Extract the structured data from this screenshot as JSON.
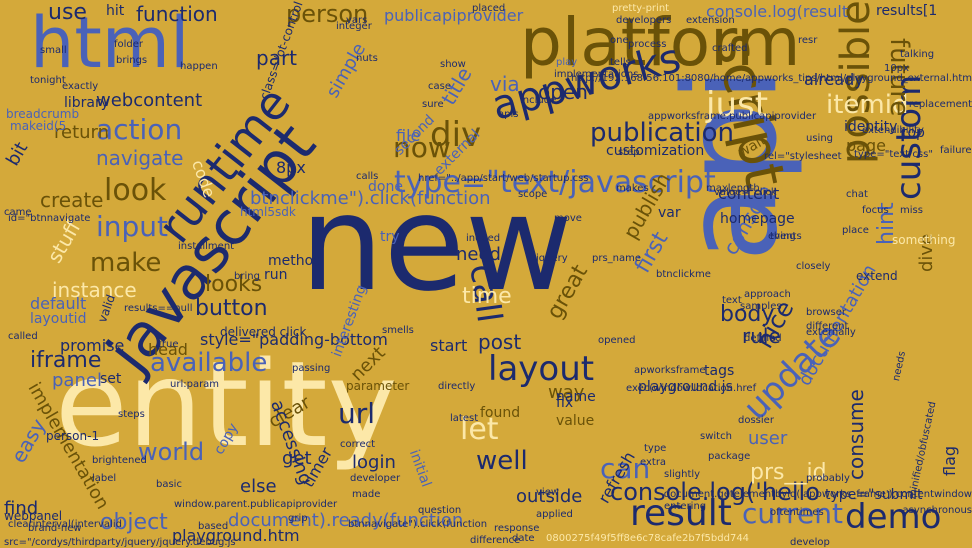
{
  "background": "#d4a93a",
  "palette": {
    "navy": "#1c2a6e",
    "blue": "#4a62b8",
    "olive": "#6a5208",
    "cream": "#fce8a8",
    "light": "#ecc96a",
    "brown": "#8a6a10"
  },
  "words": [
    {
      "text": "new",
      "color": "navy"
    },
    {
      "text": "entity",
      "color": "cream"
    },
    {
      "text": "api",
      "color": "blue"
    },
    {
      "text": "platform",
      "color": "olive"
    },
    {
      "text": "javascript",
      "color": "navy"
    },
    {
      "text": "html",
      "color": "blue"
    },
    {
      "text": "script",
      "color": "olive"
    },
    {
      "text": "runtime",
      "color": "navy"
    },
    {
      "text": "possible",
      "color": "olive"
    },
    {
      "text": "update",
      "color": "blue"
    },
    {
      "text": "custom",
      "color": "navy"
    },
    {
      "text": "appworks",
      "color": "navy"
    },
    {
      "text": "type=\"text/javascript",
      "color": "blue"
    },
    {
      "text": "layout",
      "color": "navy"
    },
    {
      "text": "result",
      "color": "navy"
    },
    {
      "text": "demo",
      "color": "navy"
    },
    {
      "text": "current",
      "color": "blue"
    },
    {
      "text": "console.log('hello",
      "color": "navy"
    },
    {
      "text": "call",
      "color": "navy"
    },
    {
      "text": "just",
      "color": "cream"
    },
    {
      "text": "itemid",
      "color": "cream"
    },
    {
      "text": "look",
      "color": "olive"
    },
    {
      "text": "action",
      "color": "blue"
    },
    {
      "text": "make",
      "color": "olive"
    },
    {
      "text": "input",
      "color": "blue"
    },
    {
      "text": "button",
      "color": "navy"
    },
    {
      "text": "looks",
      "color": "olive"
    },
    {
      "text": "available",
      "color": "blue"
    },
    {
      "text": "iframe",
      "color": "navy"
    },
    {
      "text": "url",
      "color": "navy"
    },
    {
      "text": "let",
      "color": "cream"
    },
    {
      "text": "well",
      "color": "navy"
    },
    {
      "text": "can",
      "color": "blue"
    },
    {
      "text": "world",
      "color": "blue"
    },
    {
      "text": "object",
      "color": "blue"
    },
    {
      "text": "document).ready(function",
      "color": "blue"
    },
    {
      "text": "publication",
      "color": "navy"
    },
    {
      "text": "div",
      "color": "olive"
    },
    {
      "text": "now",
      "color": "olive"
    },
    {
      "text": "future",
      "color": "olive"
    },
    {
      "text": "first",
      "color": "blue"
    },
    {
      "text": "time",
      "color": "cream"
    },
    {
      "text": "post",
      "color": "navy"
    },
    {
      "text": "body",
      "color": "navy"
    },
    {
      "text": "rule",
      "color": "navy"
    },
    {
      "text": "nice",
      "color": "navy"
    },
    {
      "text": "webcontent",
      "color": "navy"
    },
    {
      "text": "function",
      "color": "navy"
    },
    {
      "text": "person",
      "color": "olive"
    },
    {
      "text": "use",
      "color": "navy"
    },
    {
      "text": "open",
      "color": "navy"
    },
    {
      "text": "navigate",
      "color": "blue"
    },
    {
      "text": "create",
      "color": "olive"
    },
    {
      "text": "return",
      "color": "olive"
    },
    {
      "text": "btnclickme\").click(function",
      "color": "blue"
    },
    {
      "text": "console.log(result",
      "color": "blue"
    },
    {
      "text": "hint",
      "color": "blue"
    },
    {
      "text": "dive",
      "color": "olive"
    },
    {
      "text": "page",
      "color": "olive"
    },
    {
      "text": "prs__id",
      "color": "cream"
    },
    {
      "text": "login",
      "color": "navy"
    },
    {
      "text": "else",
      "color": "navy"
    },
    {
      "text": "get",
      "color": "navy"
    },
    {
      "text": "next",
      "color": "olive"
    },
    {
      "text": "start",
      "color": "navy"
    },
    {
      "text": "way",
      "color": "olive"
    },
    {
      "text": "console",
      "color": "blue"
    },
    {
      "text": "documentation",
      "color": "blue"
    },
    {
      "text": "consume",
      "color": "navy"
    },
    {
      "text": "user",
      "color": "blue"
    },
    {
      "text": "instance",
      "color": "cream"
    },
    {
      "text": "panel",
      "color": "blue"
    },
    {
      "text": "promise",
      "color": "navy"
    },
    {
      "text": "style=\"padding-bottom",
      "color": "navy"
    },
    {
      "text": "stuff",
      "color": "cream"
    },
    {
      "text": "need",
      "color": "navy"
    },
    {
      "text": "playground.htm",
      "color": "navy"
    },
    {
      "text": "publish",
      "color": "olive"
    },
    {
      "text": "customization",
      "color": "navy"
    },
    {
      "text": "content",
      "color": "navy"
    },
    {
      "text": "homepage",
      "color": "navy"
    },
    {
      "text": "implementation",
      "color": "olive"
    },
    {
      "text": "easy",
      "color": "blue"
    },
    {
      "text": "find",
      "color": "navy"
    },
    {
      "text": "clear",
      "color": "olive"
    },
    {
      "text": "library",
      "color": "navy"
    },
    {
      "text": "part",
      "color": "navy"
    },
    {
      "text": "hit",
      "color": "navy"
    },
    {
      "text": "simple",
      "color": "blue"
    },
    {
      "text": "title",
      "color": "blue"
    },
    {
      "text": "via",
      "color": "blue"
    },
    {
      "text": "publicapiprovider",
      "color": "blue"
    },
    {
      "text": "results[1",
      "color": "navy"
    },
    {
      "text": "already",
      "color": "navy"
    },
    {
      "text": "file",
      "color": "blue"
    },
    {
      "text": "done",
      "color": "blue"
    },
    {
      "text": "default",
      "color": "blue"
    },
    {
      "text": "layoutid",
      "color": "blue"
    },
    {
      "text": "head",
      "color": "olive"
    },
    {
      "text": "set",
      "color": "navy"
    },
    {
      "text": "accessing",
      "color": "navy"
    },
    {
      "text": "type=\"submit",
      "color": "navy"
    },
    {
      "text": "flag",
      "color": "navy"
    },
    {
      "text": "initial",
      "color": "blue"
    },
    {
      "text": "outside",
      "color": "navy"
    },
    {
      "text": "8px",
      "color": "navy"
    },
    {
      "text": "bit",
      "color": "navy"
    },
    {
      "text": "method",
      "color": "navy"
    },
    {
      "text": "run",
      "color": "navy"
    },
    {
      "text": "copy",
      "color": "blue"
    },
    {
      "text": "great",
      "color": "olive"
    },
    {
      "text": "interesting",
      "color": "blue"
    },
    {
      "text": "var",
      "color": "navy"
    },
    {
      "text": "try",
      "color": "blue"
    },
    {
      "text": "playground.js",
      "color": "navy"
    },
    {
      "text": "second",
      "color": "blue"
    },
    {
      "text": "external",
      "color": "blue"
    },
    {
      "text": "identity",
      "color": "navy"
    },
    {
      "text": "top",
      "color": "navy"
    },
    {
      "text": "extend",
      "color": "navy"
    },
    {
      "text": "something",
      "color": "cream"
    },
    {
      "text": "timer",
      "color": "navy"
    },
    {
      "text": "refresh",
      "color": "navy"
    },
    {
      "text": "fix",
      "color": "navy"
    },
    {
      "text": "name",
      "color": "navy"
    },
    {
      "text": "tags",
      "color": "navy"
    },
    {
      "text": "code",
      "color": "cream"
    },
    {
      "text": "found",
      "color": "olive"
    },
    {
      "text": "value",
      "color": "olive"
    },
    {
      "text": "parameter",
      "color": "olive"
    },
    {
      "text": "valid",
      "color": "navy"
    },
    {
      "text": "makeid(5",
      "color": "blue"
    },
    {
      "text": "breadcrumb",
      "color": "blue"
    },
    {
      "text": "person-1",
      "color": "navy"
    },
    {
      "text": "webpanel",
      "color": "navy"
    },
    {
      "text": "brand-new",
      "color": "navy"
    },
    {
      "text": "steps",
      "color": "navy"
    },
    {
      "text": "small",
      "color": "navy"
    },
    {
      "text": "folder",
      "color": "navy"
    },
    {
      "text": "pretty-print",
      "color": "cream"
    },
    {
      "text": "developers",
      "color": "navy"
    },
    {
      "text": "placed",
      "color": "navy"
    },
    {
      "text": "extension",
      "color": "navy"
    },
    {
      "text": "play",
      "color": "blue"
    },
    {
      "text": "implementations",
      "color": "navy"
    },
    {
      "text": "class=\"ot-control",
      "color": "navy"
    },
    {
      "text": "appworksframe.publicapiprovider",
      "color": "navy"
    },
    {
      "text": "delivered click",
      "color": "navy"
    },
    {
      "text": "passing",
      "color": "navy"
    },
    {
      "text": "smells",
      "color": "navy"
    },
    {
      "text": "btnnavigate\").click(function",
      "color": "navy"
    },
    {
      "text": "window.parent.publicapiprovider",
      "color": "navy"
    },
    {
      "text": "clearinterval(intervalid",
      "color": "navy"
    },
    {
      "text": "src=\"/cordys/thirdparty/jquery/jquery.debug.js",
      "color": "navy"
    },
    {
      "text": "href=\"../app/start/web/startup.css",
      "color": "navy"
    },
    {
      "text": "rel=\"stylesheet",
      "color": "navy"
    },
    {
      "text": "installment",
      "color": "navy"
    },
    {
      "text": "html5sdk",
      "color": "blue"
    },
    {
      "text": "id=\"btnnavigate",
      "color": "navy"
    },
    {
      "text": "step",
      "color": "navy"
    },
    {
      "text": "makes",
      "color": "navy"
    },
    {
      "text": "maxlength",
      "color": "navy"
    },
    {
      "text": "value=\"click",
      "color": "navy"
    },
    {
      "text": "scope",
      "color": "navy"
    },
    {
      "text": "move",
      "color": "navy"
    },
    {
      "text": "events",
      "color": "navy"
    },
    {
      "text": "place",
      "color": "navy"
    },
    {
      "text": "miss",
      "color": "navy"
    },
    {
      "text": "failure",
      "color": "navy"
    },
    {
      "text": "using",
      "color": "navy"
    },
    {
      "text": "extendibility",
      "color": "navy"
    },
    {
      "text": "wait",
      "color": "olive"
    },
    {
      "text": "approach",
      "color": "navy"
    },
    {
      "text": "samples",
      "color": "navy"
    },
    {
      "text": "different",
      "color": "navy"
    },
    {
      "text": "exec(window.location.href",
      "color": "navy"
    },
    {
      "text": "apworksframe",
      "color": "navy"
    },
    {
      "text": "opened",
      "color": "navy"
    },
    {
      "text": "prs_name",
      "color": "navy"
    },
    {
      "text": "btnclickme",
      "color": "navy"
    },
    {
      "text": "directly",
      "color": "navy"
    },
    {
      "text": "latest",
      "color": "navy"
    },
    {
      "text": "question",
      "color": "navy"
    },
    {
      "text": "response",
      "color": "navy"
    },
    {
      "text": "date",
      "color": "navy"
    },
    {
      "text": "difference",
      "color": "navy"
    },
    {
      "text": "applied",
      "color": "navy"
    },
    {
      "text": "view",
      "color": "navy"
    },
    {
      "text": "grip",
      "color": "navy"
    },
    {
      "text": "based",
      "color": "navy"
    },
    {
      "text": "label",
      "color": "navy"
    },
    {
      "text": "brightened",
      "color": "navy"
    },
    {
      "text": "basic",
      "color": "navy"
    },
    {
      "text": "made",
      "color": "navy"
    },
    {
      "text": "developer",
      "color": "navy"
    },
    {
      "text": "correct",
      "color": "navy"
    },
    {
      "text": "url:param",
      "color": "navy"
    },
    {
      "text": "externally",
      "color": "navy"
    },
    {
      "text": "browser",
      "color": "navy"
    },
    {
      "text": "indeed",
      "color": "navy"
    },
    {
      "text": "jquery",
      "color": "navy"
    },
    {
      "text": "bring",
      "color": "navy"
    },
    {
      "text": "called",
      "color": "navy"
    },
    {
      "text": "results==null",
      "color": "navy"
    },
    {
      "text": "true",
      "color": "navy"
    },
    {
      "text": "defined",
      "color": "navy"
    },
    {
      "text": "text",
      "color": "navy"
    },
    {
      "text": "type",
      "color": "navy"
    },
    {
      "text": "switch",
      "color": "navy"
    },
    {
      "text": "package",
      "color": "navy"
    },
    {
      "text": "probably",
      "color": "navy"
    },
    {
      "text": "asynchronous",
      "color": "navy"
    },
    {
      "text": "develop",
      "color": "navy"
    },
    {
      "text": "0800275f49f5ff8e6c78cafe2b7f5bdd744",
      "color": "cream"
    },
    {
      "text": "type=\"text/css\"",
      "color": "navy"
    },
    {
      "text": "dossier",
      "color": "navy"
    },
    {
      "text": "resr",
      "color": "navy"
    },
    {
      "text": "came",
      "color": "navy"
    },
    {
      "text": "tonight",
      "color": "navy"
    },
    {
      "text": "exactly",
      "color": "navy"
    },
    {
      "text": "integer",
      "color": "navy"
    },
    {
      "text": "happen",
      "color": "navy"
    },
    {
      "text": "brings",
      "color": "navy"
    },
    {
      "text": "process",
      "color": "navy"
    },
    {
      "text": "crafted",
      "color": "navy"
    },
    {
      "text": "10px",
      "color": "navy"
    },
    {
      "text": "talking",
      "color": "navy"
    },
    {
      "text": "replacement",
      "color": "navy"
    },
    {
      "text": "focus",
      "color": "navy"
    },
    {
      "text": "chat",
      "color": "navy"
    },
    {
      "text": "closely",
      "color": "navy"
    },
    {
      "text": "thing",
      "color": "navy"
    },
    {
      "text": "apis",
      "color": "navy"
    },
    {
      "text": "include",
      "color": "navy"
    },
    {
      "text": "case",
      "color": "navy"
    },
    {
      "text": "show",
      "color": "navy"
    },
    {
      "text": "sure",
      "color": "navy"
    },
    {
      "text": "nuts",
      "color": "navy"
    },
    {
      "text": "vars",
      "color": "navy"
    },
    {
      "text": "calls",
      "color": "navy"
    },
    {
      "text": "one",
      "color": "navy"
    },
    {
      "text": "tells",
      "color": "navy"
    },
    {
      "text": "oftentimes",
      "color": "navy"
    },
    {
      "text": "needs",
      "color": "navy"
    },
    {
      "text": "minified/obfuscated",
      "color": "navy"
    },
    {
      "text": "http://192.168.56.101:8080/home/appworks_tips/html/playground_external.htm",
      "color": "navy"
    },
    {
      "text": "document.getelementbyid('appworks_frame').contentwindow",
      "color": "navy"
    },
    {
      "text": "entering",
      "color": "navy"
    },
    {
      "text": "slightly",
      "color": "navy"
    },
    {
      "text": "extra",
      "color": "navy"
    },
    {
      "text": "nicely",
      "color": "navy"
    },
    {
      "text": "dummy",
      "color": "navy"
    }
  ]
}
